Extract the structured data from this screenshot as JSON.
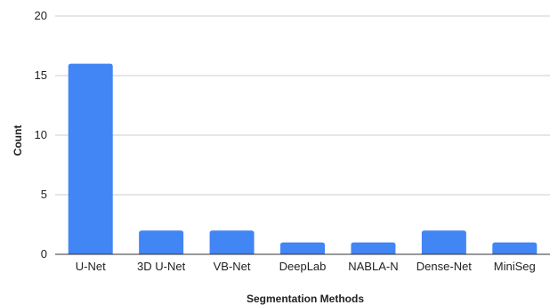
{
  "chart_data": {
    "type": "bar",
    "categories": [
      "U-Net",
      "3D U-Net",
      "VB-Net",
      "DeepLab",
      "NABLA-N",
      "Dense-Net",
      "MiniSeg"
    ],
    "values": [
      16,
      2,
      2,
      1,
      1,
      2,
      1
    ],
    "xlabel": "Segmentation Methods",
    "ylabel": "Count",
    "ylim": [
      0,
      20
    ],
    "yticks": [
      0,
      5,
      10,
      15,
      20
    ],
    "grid": true,
    "bar_color": "#4285f4",
    "grid_color": "#cccccc",
    "axis_color": "#333333"
  }
}
